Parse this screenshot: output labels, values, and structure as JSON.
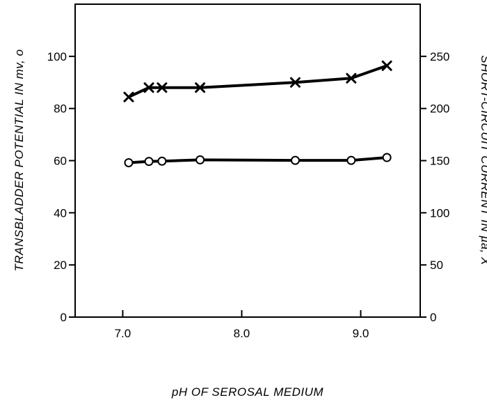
{
  "chart_data": {
    "type": "line",
    "xlabel": "pH OF SEROSAL MEDIUM",
    "ylabel_left": "TRANSBLADDER POTENTIAL IN mv, o",
    "ylabel_right": "SHORT-CIRCUIT CURRENT IN µa, X",
    "xlim": [
      6.6,
      9.5
    ],
    "ylim_left": [
      0,
      120
    ],
    "ylim_right": [
      0,
      300
    ],
    "x_ticks": [
      7.0,
      8.0,
      9.0
    ],
    "x_tick_labels": [
      "7.0",
      "8.0",
      "9.0"
    ],
    "y_left_ticks": [
      0,
      20,
      40,
      60,
      80,
      100
    ],
    "y_left_tick_labels": [
      "0",
      "20",
      "40",
      "60",
      "80",
      "100"
    ],
    "y_right_ticks": [
      0,
      50,
      100,
      150,
      200,
      250
    ],
    "y_right_tick_labels": [
      "0",
      "50",
      "100",
      "150",
      "200",
      "250"
    ],
    "grid": false,
    "series": [
      {
        "marker": "circle",
        "axis": "left",
        "x": [
          7.05,
          7.22,
          7.33,
          7.65,
          8.45,
          8.92,
          9.22
        ],
        "y": [
          59.2,
          59.7,
          59.8,
          60.3,
          60.1,
          60.1,
          61.2
        ]
      },
      {
        "marker": "x",
        "axis": "right",
        "x": [
          7.05,
          7.22,
          7.33,
          7.65,
          8.45,
          8.92,
          9.22
        ],
        "y": [
          211,
          220,
          220,
          220,
          225,
          229,
          241
        ]
      }
    ]
  }
}
